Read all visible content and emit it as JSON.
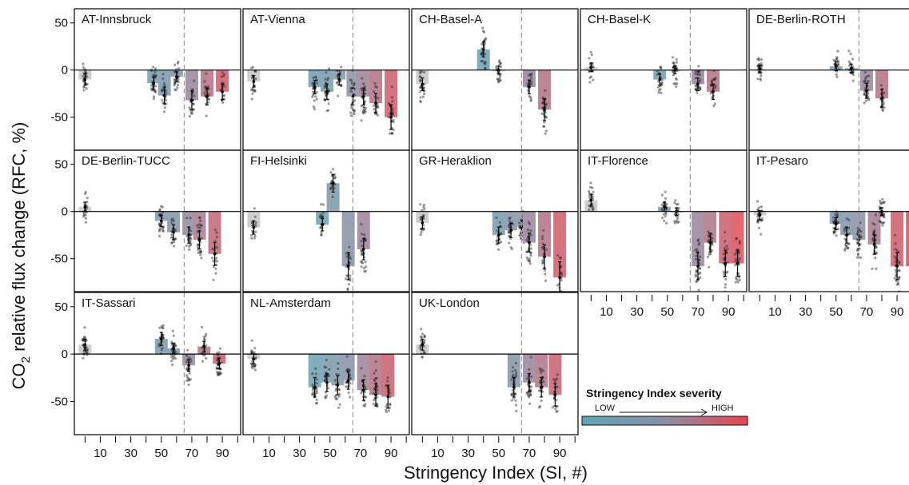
{
  "chart_data": {
    "type": "bar",
    "ylabel": {
      "prefix": "CO",
      "subscript": "2",
      "suffix": " relative flux change (RFC, %)"
    },
    "xlabel": "Stringency Index (SI, #)",
    "ylim": [
      -85,
      65
    ],
    "yticks": [
      50,
      0,
      -50
    ],
    "xticks": [
      10,
      30,
      50,
      70,
      90
    ],
    "xlim": [
      -7,
      102
    ],
    "threshold_si": 65,
    "legend": {
      "title": "Stringency Index severity",
      "low": "LOW",
      "high": "HIGH",
      "low_color": "#5fa6b5",
      "mid_color": "#8a8fa6",
      "high_color": "#e8454f"
    },
    "panels": [
      {
        "name": "AT-Innsbruck",
        "bars": [
          [
            0,
            -10
          ],
          [
            45,
            -14
          ],
          [
            52,
            -27
          ],
          [
            60,
            -7
          ],
          [
            70,
            -32
          ],
          [
            80,
            -28
          ],
          [
            90,
            -23
          ]
        ]
      },
      {
        "name": "AT-Vienna",
        "bars": [
          [
            0,
            -12
          ],
          [
            40,
            -18
          ],
          [
            48,
            -23
          ],
          [
            56,
            -10
          ],
          [
            65,
            -28
          ],
          [
            72,
            -28
          ],
          [
            80,
            -35
          ],
          [
            90,
            -50
          ]
        ]
      },
      {
        "name": "CH-Basel-A",
        "bars": [
          [
            0,
            -15
          ],
          [
            40,
            22
          ],
          [
            50,
            0
          ],
          [
            70,
            -18
          ],
          [
            80,
            -42
          ]
        ]
      },
      {
        "name": "CH-Basel-K",
        "bars": [
          [
            0,
            3
          ],
          [
            45,
            -10
          ],
          [
            55,
            0
          ],
          [
            70,
            -15
          ],
          [
            80,
            -23
          ]
        ]
      },
      {
        "name": "DE-Berlin-ROTH",
        "bars": [
          [
            0,
            1
          ],
          [
            50,
            4
          ],
          [
            60,
            2
          ],
          [
            70,
            -22
          ],
          [
            80,
            -30
          ]
        ]
      },
      {
        "name": "DE-Berlin-TUCC",
        "bars": [
          [
            0,
            5
          ],
          [
            50,
            -10
          ],
          [
            58,
            -22
          ],
          [
            68,
            -25
          ],
          [
            75,
            -30
          ],
          [
            85,
            -45
          ]
        ]
      },
      {
        "name": "FI-Helsinki",
        "bars": [
          [
            0,
            -17
          ],
          [
            45,
            -14
          ],
          [
            52,
            30
          ],
          [
            62,
            -58
          ],
          [
            72,
            -40
          ]
        ]
      },
      {
        "name": "GR-Heraklion",
        "bars": [
          [
            0,
            -12
          ],
          [
            50,
            -25
          ],
          [
            58,
            -20
          ],
          [
            65,
            -16
          ],
          [
            70,
            -33
          ],
          [
            80,
            -48
          ],
          [
            90,
            -70
          ]
        ]
      },
      {
        "name": "IT-Florence",
        "bars": [
          [
            0,
            12
          ],
          [
            48,
            5
          ],
          [
            56,
            0
          ],
          [
            70,
            -58
          ],
          [
            78,
            -33
          ],
          [
            88,
            -55
          ],
          [
            96,
            -55
          ]
        ]
      },
      {
        "name": "IT-Pesaro",
        "bars": [
          [
            0,
            -4
          ],
          [
            50,
            -13
          ],
          [
            57,
            -25
          ],
          [
            65,
            -30
          ],
          [
            75,
            -35
          ],
          [
            80,
            0
          ],
          [
            90,
            -58
          ],
          [
            100,
            -58
          ]
        ]
      },
      {
        "name": "IT-Sassari",
        "bars": [
          [
            0,
            10
          ],
          [
            50,
            16
          ],
          [
            58,
            6
          ],
          [
            68,
            -12
          ],
          [
            78,
            8
          ],
          [
            88,
            -10
          ]
        ]
      },
      {
        "name": "NL-Amsterdam",
        "bars": [
          [
            0,
            -5
          ],
          [
            40,
            -35
          ],
          [
            48,
            -30
          ],
          [
            55,
            -33
          ],
          [
            62,
            -28
          ],
          [
            72,
            -38
          ],
          [
            80,
            -43
          ],
          [
            88,
            -45
          ]
        ]
      },
      {
        "name": "UK-London",
        "bars": [
          [
            0,
            10
          ],
          [
            60,
            -35
          ],
          [
            70,
            -30
          ],
          [
            78,
            -35
          ],
          [
            87,
            -43
          ]
        ]
      }
    ]
  }
}
